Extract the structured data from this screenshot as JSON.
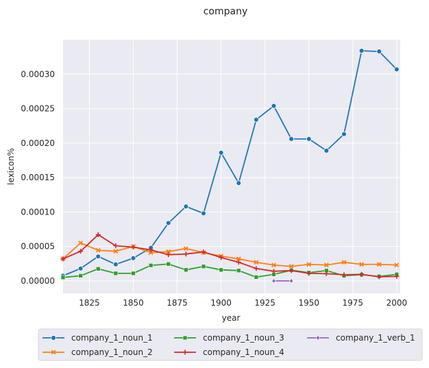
{
  "chart_data": {
    "type": "line",
    "title": "company",
    "xlabel": "year",
    "ylabel": "lexicon%",
    "xlim": [
      1810,
      2002
    ],
    "ylim": [
      -1.8e-05,
      0.00035
    ],
    "grid": true,
    "legend_placement": "below",
    "x_ticks": [
      1825,
      1850,
      1875,
      1900,
      1925,
      1950,
      1975,
      2000
    ],
    "x_tick_labels": [
      "1825",
      "1850",
      "1875",
      "1900",
      "1925",
      "1950",
      "1975",
      "2000"
    ],
    "y_ticks": [
      0,
      5e-05,
      0.0001,
      0.00015,
      0.0002,
      0.00025,
      0.0003
    ],
    "y_tick_labels": [
      "0.00000",
      "0.00005",
      "0.00010",
      "0.00015",
      "0.00020",
      "0.00025",
      "0.00030"
    ],
    "series": [
      {
        "name": "company_1_noun_1",
        "color": "#1f77b4",
        "marker": "circle",
        "x": [
          1810,
          1820,
          1830,
          1840,
          1850,
          1860,
          1870,
          1880,
          1890,
          1900,
          1910,
          1920,
          1930,
          1940,
          1950,
          1960,
          1970,
          1980,
          1990,
          2000
        ],
        "y": [
          7.5e-06,
          1.8e-05,
          3.55e-05,
          2.4e-05,
          3.3e-05,
          4.8e-05,
          8.4e-05,
          0.000108,
          9.8e-05,
          0.000186,
          0.000142,
          0.000234,
          0.000254,
          0.000206,
          0.000206,
          0.000189,
          0.000213,
          0.000334,
          0.000333,
          0.000307
        ]
      },
      {
        "name": "company_1_noun_2",
        "color": "#ff7f0e",
        "marker": "x",
        "x": [
          1810,
          1820,
          1830,
          1840,
          1850,
          1860,
          1870,
          1880,
          1890,
          1900,
          1910,
          1920,
          1930,
          1940,
          1950,
          1960,
          1970,
          1980,
          1990,
          2000
        ],
        "y": [
          3.2e-05,
          5.5e-05,
          4.45e-05,
          4.3e-05,
          5e-05,
          4.1e-05,
          4.25e-05,
          4.7e-05,
          4.1e-05,
          3.6e-05,
          3.2e-05,
          2.7e-05,
          2.3e-05,
          2.1e-05,
          2.4e-05,
          2.3e-05,
          2.7e-05,
          2.4e-05,
          2.4e-05,
          2.3e-05
        ]
      },
      {
        "name": "company_1_noun_3",
        "color": "#2ca02c",
        "marker": "square",
        "x": [
          1810,
          1820,
          1830,
          1840,
          1850,
          1860,
          1870,
          1880,
          1890,
          1900,
          1910,
          1920,
          1930,
          1940,
          1950,
          1960,
          1970,
          1980,
          1990,
          2000
        ],
        "y": [
          5e-06,
          7.5e-06,
          1.75e-05,
          1.1e-05,
          1.1e-05,
          2.25e-05,
          2.45e-05,
          1.6e-05,
          2.1e-05,
          1.6e-05,
          1.5e-05,
          5.5e-06,
          9.5e-06,
          1.55e-05,
          1.2e-05,
          1.5e-05,
          7.5e-06,
          9e-06,
          6.5e-06,
          9.5e-06
        ]
      },
      {
        "name": "company_1_noun_4",
        "color": "#d62728",
        "marker": "plus",
        "x": [
          1810,
          1820,
          1830,
          1840,
          1850,
          1860,
          1870,
          1880,
          1890,
          1900,
          1910,
          1920,
          1930,
          1940,
          1950,
          1960,
          1970,
          1980,
          1990,
          2000
        ],
        "y": [
          3.2e-05,
          4.3e-05,
          6.7e-05,
          5.1e-05,
          4.9e-05,
          4.5e-05,
          3.8e-05,
          3.9e-05,
          4.2e-05,
          3.4e-05,
          2.7e-05,
          1.8e-05,
          1.4e-05,
          1.5e-05,
          1.1e-05,
          1.05e-05,
          9e-06,
          9.5e-06,
          6e-06,
          6.5e-06
        ]
      },
      {
        "name": "company_1_verb_1",
        "color": "#9467bd",
        "marker": "diamond",
        "x": [
          1930,
          1940
        ],
        "y": [
          0.0,
          0.0
        ]
      }
    ]
  }
}
